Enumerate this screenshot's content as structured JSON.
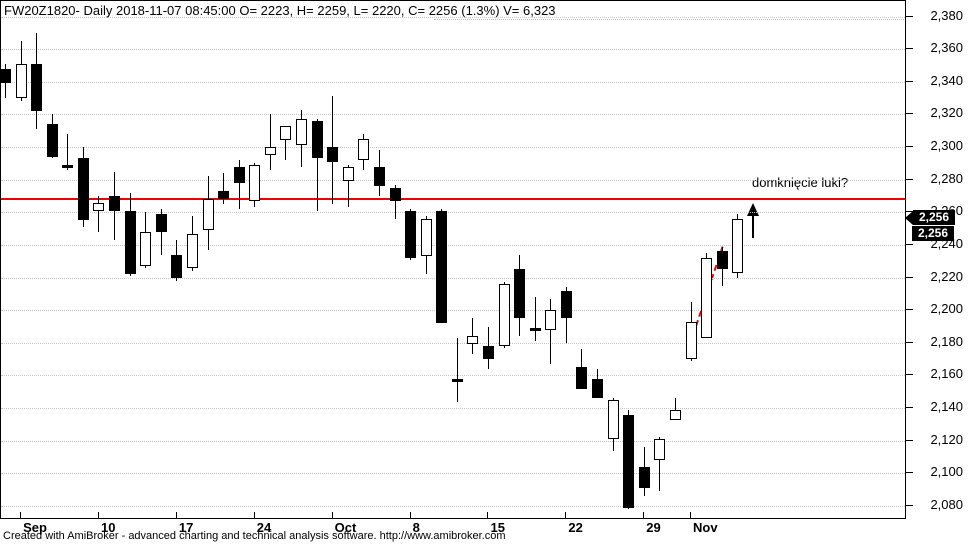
{
  "window": {
    "title": "FW20Z1820- Daily 2018-11-07 08:45:00 O= 2223, H= 2259, L= 2220, C= 2256 (1.3%) V= 6,323"
  },
  "footer": {
    "text": "Created with AmiBroker - advanced charting and technical analysis software. http://www.amibroker.com"
  },
  "annotation": {
    "text": "domknięcie luki?"
  },
  "price_tags": [
    {
      "value": "2,256",
      "style": "callout"
    },
    {
      "value": "2,256",
      "style": "plain"
    }
  ],
  "colors": {
    "up_body": "#ffffff",
    "down_body": "#000000",
    "outline": "#000000",
    "grid": "#c6c6c6",
    "hline": "#ee0000",
    "trendline": "#ee0000",
    "tag_bg": "#000000",
    "tag_text": "#ffffff",
    "background": "#ffffff"
  },
  "chart_data": {
    "type": "candlestick",
    "symbol": "FW20Z1820",
    "interval": "Daily",
    "title": "FW20Z1820- Daily 2018-11-07 08:45:00 O= 2223, H= 2259, L= 2220, C= 2256 (1.3%) V= 6,323",
    "last_bar": {
      "date": "2018-11-07",
      "open": 2223,
      "high": 2259,
      "low": 2220,
      "close": 2256,
      "change": "1.3%",
      "volume": "6,323"
    },
    "y_axis": {
      "min": 2080,
      "max": 2380,
      "step": 20,
      "position": "right",
      "labels": [
        "2,380",
        "2,360",
        "2,340",
        "2,320",
        "2,300",
        "2,280",
        "2,260",
        "2,240",
        "2,220",
        "2,200",
        "2,180",
        "2,160",
        "2,140",
        "2,120",
        "2,100",
        "2,080"
      ]
    },
    "x_axis": {
      "ticks": [
        {
          "label": "Sep",
          "bar": 2,
          "month": true
        },
        {
          "label": "10",
          "bar": 7,
          "month": false
        },
        {
          "label": "17",
          "bar": 12,
          "month": false
        },
        {
          "label": "24",
          "bar": 17,
          "month": false
        },
        {
          "label": "Oct",
          "bar": 22,
          "month": true
        },
        {
          "label": "8",
          "bar": 27,
          "month": false
        },
        {
          "label": "15",
          "bar": 32,
          "month": false
        },
        {
          "label": "22",
          "bar": 37,
          "month": false
        },
        {
          "label": "29",
          "bar": 42,
          "month": false
        },
        {
          "label": "Nov",
          "bar": 45,
          "month": true
        }
      ]
    },
    "grid": "horizontal-dotted",
    "hline": {
      "price": 2268
    },
    "trendline": {
      "bar1": 44.9,
      "price1": 2179,
      "bar2": 47.0,
      "price2": 2239,
      "dashed": true
    },
    "arrow_marker": {
      "bar": 49,
      "tip_price": 2266,
      "tail_price": 2244,
      "direction": "up"
    },
    "bars_ohlc": [
      [
        2348,
        2351,
        2330,
        2339
      ],
      [
        2330,
        2365,
        2328,
        2351
      ],
      [
        2351,
        2370,
        2311,
        2322
      ],
      [
        2314,
        2320,
        2293,
        2294
      ],
      [
        2289,
        2308,
        2286,
        2287
      ],
      [
        2293,
        2300,
        2251,
        2255
      ],
      [
        2261,
        2270,
        2248,
        2266
      ],
      [
        2270,
        2285,
        2243,
        2261
      ],
      [
        2261,
        2272,
        2221,
        2222
      ],
      [
        2227,
        2260,
        2226,
        2248
      ],
      [
        2259,
        2262,
        2234,
        2248
      ],
      [
        2234,
        2243,
        2218,
        2220
      ],
      [
        2226,
        2258,
        2224,
        2247
      ],
      [
        2249,
        2282,
        2237,
        2268
      ],
      [
        2273,
        2284,
        2265,
        2268
      ],
      [
        2288,
        2292,
        2262,
        2278
      ],
      [
        2267,
        2290,
        2263,
        2289
      ],
      [
        2295,
        2320,
        2286,
        2300
      ],
      [
        2304,
        2313,
        2292,
        2313
      ],
      [
        2301,
        2323,
        2288,
        2317
      ],
      [
        2316,
        2317,
        2261,
        2293
      ],
      [
        2300,
        2331,
        2265,
        2291
      ],
      [
        2279,
        2289,
        2263,
        2288
      ],
      [
        2292,
        2308,
        2286,
        2305
      ],
      [
        2288,
        2298,
        2270,
        2276
      ],
      [
        2275,
        2277,
        2256,
        2267
      ],
      [
        2261,
        2262,
        2231,
        2232
      ],
      [
        2233,
        2258,
        2222,
        2256
      ],
      [
        2261,
        2262,
        2192,
        2192
      ],
      [
        2158,
        2183,
        2144,
        2157
      ],
      [
        2179,
        2195,
        2173,
        2184
      ],
      [
        2178,
        2190,
        2164,
        2170
      ],
      [
        2178,
        2217,
        2177,
        2216
      ],
      [
        2225,
        2234,
        2184,
        2195
      ],
      [
        2189,
        2208,
        2181,
        2188
      ],
      [
        2188,
        2207,
        2167,
        2200
      ],
      [
        2212,
        2214,
        2180,
        2195
      ],
      [
        2165,
        2176,
        2152,
        2152
      ],
      [
        2158,
        2164,
        2146,
        2146
      ],
      [
        2121,
        2146,
        2114,
        2145
      ],
      [
        2136,
        2139,
        2078,
        2079
      ],
      [
        2104,
        2116,
        2086,
        2091
      ],
      [
        2108,
        2122,
        2089,
        2121
      ],
      [
        2133,
        2146,
        2133,
        2139
      ],
      [
        2170,
        2205,
        2169,
        2193
      ],
      [
        2183,
        2235,
        2183,
        2232
      ],
      [
        2236,
        2239,
        2215,
        2225
      ],
      [
        2223,
        2259,
        2220,
        2256
      ]
    ]
  }
}
